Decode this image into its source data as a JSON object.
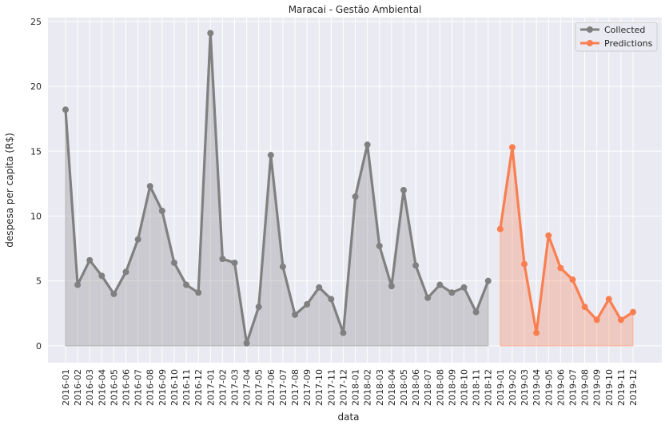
{
  "chart_data": {
    "type": "line",
    "title": "Maracai - Gestão Ambiental",
    "xlabel": "data",
    "ylabel": "despesa per capita (R$)",
    "ylim": [
      -1.3,
      25.3
    ],
    "yticks": [
      0,
      5,
      10,
      15,
      20,
      25
    ],
    "grid": true,
    "legend_position": "top-right",
    "series": [
      {
        "name": "Collected",
        "color": "#808080",
        "x": [
          "2016-01",
          "2016-02",
          "2016-03",
          "2016-04",
          "2016-05",
          "2016-06",
          "2016-07",
          "2016-08",
          "2016-09",
          "2016-10",
          "2016-11",
          "2016-12",
          "2017-01",
          "2017-02",
          "2017-03",
          "2017-04",
          "2017-05",
          "2017-06",
          "2017-07",
          "2017-08",
          "2017-09",
          "2017-10",
          "2017-11",
          "2017-12",
          "2018-01",
          "2018-02",
          "2018-03",
          "2018-04",
          "2018-05",
          "2018-06",
          "2018-07",
          "2018-08",
          "2018-09",
          "2018-10",
          "2018-11",
          "2018-12"
        ],
        "values": [
          18.2,
          4.7,
          6.6,
          5.4,
          4.0,
          5.7,
          8.2,
          12.3,
          10.4,
          6.4,
          4.7,
          4.1,
          24.1,
          6.7,
          6.4,
          0.2,
          3.0,
          14.7,
          6.1,
          2.4,
          3.2,
          4.5,
          3.6,
          1.0,
          11.5,
          15.5,
          7.7,
          4.6,
          12.0,
          6.2,
          3.7,
          4.7,
          4.1,
          4.5,
          2.6,
          5.0
        ]
      },
      {
        "name": "Predictions",
        "color": "#f97f51",
        "x": [
          "2019-01",
          "2019-02",
          "2019-03",
          "2019-04",
          "2019-05",
          "2019-06",
          "2019-07",
          "2019-08",
          "2019-09",
          "2019-10",
          "2019-11",
          "2019-12"
        ],
        "values": [
          9.0,
          15.3,
          6.3,
          1.0,
          8.5,
          6.0,
          5.1,
          3.0,
          2.0,
          3.6,
          2.0,
          2.6
        ]
      }
    ],
    "categories": [
      "2016-01",
      "2016-02",
      "2016-03",
      "2016-04",
      "2016-05",
      "2016-06",
      "2016-07",
      "2016-08",
      "2016-09",
      "2016-10",
      "2016-11",
      "2016-12",
      "2017-01",
      "2017-02",
      "2017-03",
      "2017-04",
      "2017-05",
      "2017-06",
      "2017-07",
      "2017-08",
      "2017-09",
      "2017-10",
      "2017-11",
      "2017-12",
      "2018-01",
      "2018-02",
      "2018-03",
      "2018-04",
      "2018-05",
      "2018-06",
      "2018-07",
      "2018-08",
      "2018-09",
      "2018-10",
      "2018-11",
      "2018-12",
      "2019-01",
      "2019-02",
      "2019-03",
      "2019-04",
      "2019-05",
      "2019-06",
      "2019-07",
      "2019-08",
      "2019-09",
      "2019-10",
      "2019-11",
      "2019-12"
    ]
  }
}
